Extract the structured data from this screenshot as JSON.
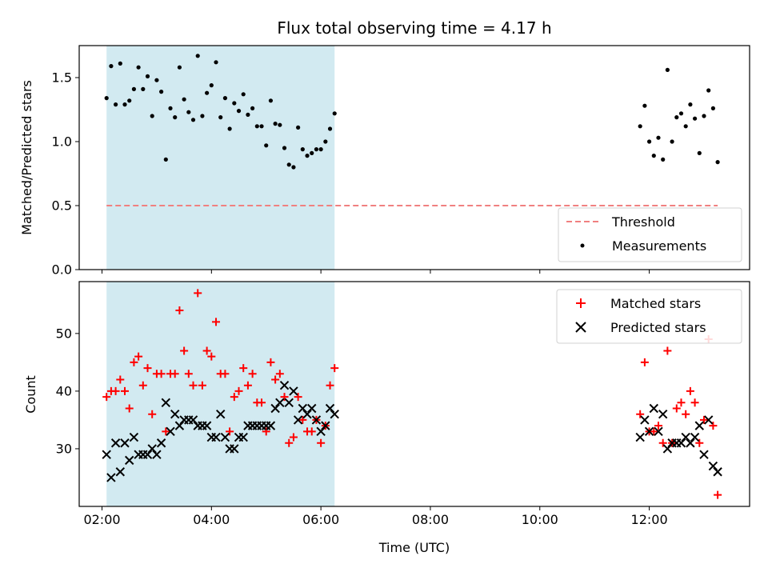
{
  "chart_data": [
    {
      "type": "scatter",
      "title": "Flux total observing time = 4.17 h",
      "xlabel": "",
      "ylabel": "Matched/Predicted stars",
      "xlim": [
        "01:35",
        "13:50"
      ],
      "ylim": [
        0,
        1.75
      ],
      "y_ticks": [
        "0.0",
        "0.5",
        "1.0",
        "1.5"
      ],
      "grid": false,
      "legend_position": "lower-right",
      "shaded_interval": [
        "02:05",
        "06:15"
      ],
      "shaded_color": "#add8e6",
      "threshold": {
        "name": "Threshold",
        "value": 0.5,
        "x_range": [
          "02:05",
          "13:15"
        ],
        "color": "#f08080",
        "style": "dashed"
      },
      "series": [
        {
          "name": "Measurements",
          "color": "#000000",
          "marker": "dot",
          "x": [
            "02:05",
            "02:10",
            "02:15",
            "02:20",
            "02:25",
            "02:30",
            "02:35",
            "02:40",
            "02:45",
            "02:50",
            "02:55",
            "03:00",
            "03:05",
            "03:10",
            "03:15",
            "03:20",
            "03:25",
            "03:30",
            "03:35",
            "03:40",
            "03:45",
            "03:50",
            "03:55",
            "04:00",
            "04:05",
            "04:10",
            "04:15",
            "04:20",
            "04:25",
            "04:30",
            "04:35",
            "04:40",
            "04:45",
            "04:50",
            "04:55",
            "05:00",
            "05:05",
            "05:10",
            "05:15",
            "05:20",
            "05:25",
            "05:30",
            "05:35",
            "05:40",
            "05:45",
            "05:50",
            "05:55",
            "06:00",
            "06:05",
            "06:10",
            "06:15",
            "11:50",
            "11:55",
            "12:00",
            "12:05",
            "12:10",
            "12:15",
            "12:20",
            "12:25",
            "12:30",
            "12:35",
            "12:40",
            "12:45",
            "12:50",
            "12:55",
            "13:00",
            "13:05",
            "13:10",
            "13:15"
          ],
          "values": [
            1.34,
            1.59,
            1.29,
            1.61,
            1.29,
            1.32,
            1.41,
            1.58,
            1.41,
            1.51,
            1.2,
            1.48,
            1.39,
            0.86,
            1.26,
            1.19,
            1.58,
            1.33,
            1.23,
            1.17,
            1.67,
            1.2,
            1.38,
            1.44,
            1.62,
            1.19,
            1.34,
            1.1,
            1.3,
            1.24,
            1.37,
            1.21,
            1.26,
            1.12,
            1.12,
            0.97,
            1.32,
            1.14,
            1.13,
            0.95,
            0.82,
            0.8,
            1.11,
            0.94,
            0.89,
            0.91,
            0.94,
            0.94,
            1.0,
            1.1,
            1.22,
            1.12,
            1.28,
            1.0,
            0.89,
            1.03,
            0.86,
            1.56,
            1.0,
            1.19,
            1.22,
            1.12,
            1.29,
            1.18,
            0.91,
            1.2,
            1.4,
            1.26,
            0.84
          ]
        }
      ]
    },
    {
      "type": "scatter",
      "title": "",
      "xlabel": "Time (UTC)",
      "ylabel": "Count",
      "xlim": [
        "01:35",
        "13:50"
      ],
      "x_ticks": [
        "02:00",
        "04:00",
        "06:00",
        "08:00",
        "10:00",
        "12:00"
      ],
      "ylim": [
        20,
        59
      ],
      "y_ticks": [
        "30",
        "40",
        "50"
      ],
      "grid": false,
      "legend_position": "top-right",
      "shaded_interval": [
        "02:05",
        "06:15"
      ],
      "shaded_color": "#add8e6",
      "series": [
        {
          "name": "Matched stars",
          "color": "#ff0000",
          "marker": "plus",
          "x": [
            "02:05",
            "02:10",
            "02:15",
            "02:20",
            "02:25",
            "02:30",
            "02:35",
            "02:40",
            "02:45",
            "02:50",
            "02:55",
            "03:00",
            "03:05",
            "03:10",
            "03:15",
            "03:20",
            "03:25",
            "03:30",
            "03:35",
            "03:40",
            "03:45",
            "03:50",
            "03:55",
            "04:00",
            "04:05",
            "04:10",
            "04:15",
            "04:20",
            "04:25",
            "04:30",
            "04:35",
            "04:40",
            "04:45",
            "04:50",
            "04:55",
            "05:00",
            "05:05",
            "05:10",
            "05:15",
            "05:20",
            "05:25",
            "05:30",
            "05:35",
            "05:40",
            "05:45",
            "05:50",
            "05:55",
            "06:00",
            "06:05",
            "06:10",
            "06:15",
            "11:50",
            "11:55",
            "12:00",
            "12:05",
            "12:10",
            "12:15",
            "12:20",
            "12:25",
            "12:30",
            "12:35",
            "12:40",
            "12:45",
            "12:50",
            "12:55",
            "13:00",
            "13:05",
            "13:10",
            "13:15"
          ],
          "values": [
            39,
            40,
            40,
            42,
            40,
            37,
            45,
            46,
            41,
            44,
            36,
            43,
            43,
            33,
            43,
            43,
            54,
            47,
            43,
            41,
            57,
            41,
            47,
            46,
            52,
            43,
            43,
            33,
            39,
            40,
            44,
            41,
            43,
            38,
            38,
            33,
            45,
            42,
            43,
            39,
            31,
            32,
            39,
            35,
            33,
            33,
            35,
            31,
            34,
            41,
            44,
            36,
            45,
            33,
            33,
            34,
            31,
            47,
            31,
            37,
            38,
            36,
            40,
            38,
            31,
            35,
            49,
            34,
            22
          ]
        },
        {
          "name": "Predicted stars",
          "color": "#000000",
          "marker": "x",
          "x": [
            "02:05",
            "02:10",
            "02:15",
            "02:20",
            "02:25",
            "02:30",
            "02:35",
            "02:40",
            "02:45",
            "02:50",
            "02:55",
            "03:00",
            "03:05",
            "03:10",
            "03:15",
            "03:20",
            "03:25",
            "03:30",
            "03:35",
            "03:40",
            "03:45",
            "03:50",
            "03:55",
            "04:00",
            "04:05",
            "04:10",
            "04:15",
            "04:20",
            "04:25",
            "04:30",
            "04:35",
            "04:40",
            "04:45",
            "04:50",
            "04:55",
            "05:00",
            "05:05",
            "05:10",
            "05:15",
            "05:20",
            "05:25",
            "05:30",
            "05:35",
            "05:40",
            "05:45",
            "05:50",
            "05:55",
            "06:00",
            "06:05",
            "06:10",
            "06:15",
            "11:50",
            "11:55",
            "12:00",
            "12:05",
            "12:10",
            "12:15",
            "12:20",
            "12:25",
            "12:30",
            "12:35",
            "12:40",
            "12:45",
            "12:50",
            "12:55",
            "13:00",
            "13:05",
            "13:10",
            "13:15"
          ],
          "values": [
            29,
            25,
            31,
            26,
            31,
            28,
            32,
            29,
            29,
            29,
            30,
            29,
            31,
            38,
            33,
            36,
            34,
            35,
            35,
            35,
            34,
            34,
            34,
            32,
            32,
            36,
            32,
            30,
            30,
            32,
            32,
            34,
            34,
            34,
            34,
            34,
            34,
            37,
            38,
            41,
            38,
            40,
            35,
            37,
            36,
            37,
            35,
            33,
            34,
            37,
            36,
            32,
            35,
            33,
            37,
            33,
            36,
            30,
            31,
            31,
            31,
            32,
            31,
            32,
            34,
            29,
            35,
            27,
            26
          ]
        }
      ]
    }
  ]
}
